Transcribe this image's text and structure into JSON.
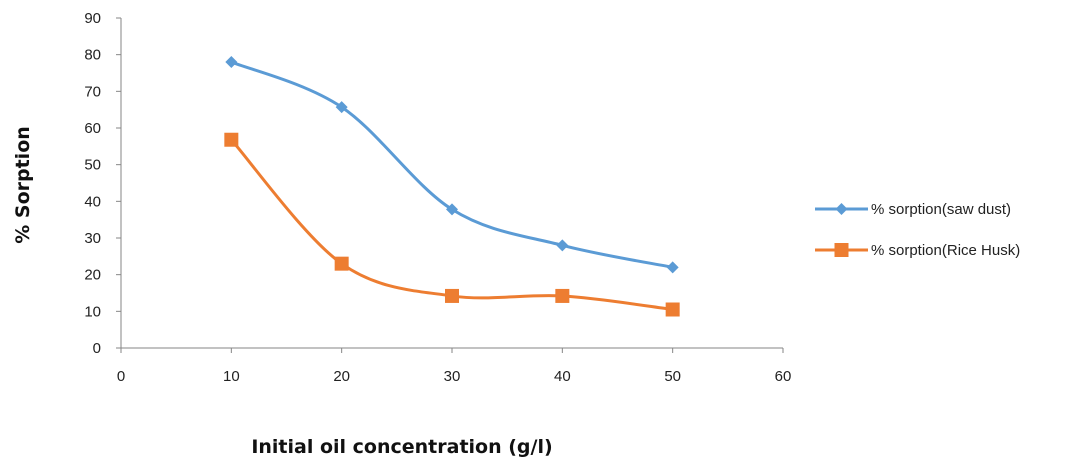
{
  "chart_data": {
    "type": "line",
    "title": "",
    "xlabel": "Initial oil concentration (g/l)",
    "ylabel": "% Sorption",
    "xlim": [
      0,
      60
    ],
    "ylim": [
      0,
      90
    ],
    "x_ticks": [
      0,
      10,
      20,
      30,
      40,
      50,
      60
    ],
    "y_ticks": [
      0,
      10,
      20,
      30,
      40,
      50,
      60,
      70,
      80,
      90
    ],
    "grid": false,
    "smooth": true,
    "legend_position": "right",
    "x": [
      10,
      20,
      30,
      40,
      50
    ],
    "series": [
      {
        "name": "% sorption(saw dust)",
        "values": [
          78,
          65.7,
          37.8,
          28,
          22
        ],
        "color": "#5B9BD5",
        "marker": "diamond"
      },
      {
        "name": "% sorption(Rice Husk)",
        "values": [
          56.8,
          23,
          14.2,
          14.2,
          10.5
        ],
        "color": "#ED7D31",
        "marker": "square"
      }
    ]
  }
}
